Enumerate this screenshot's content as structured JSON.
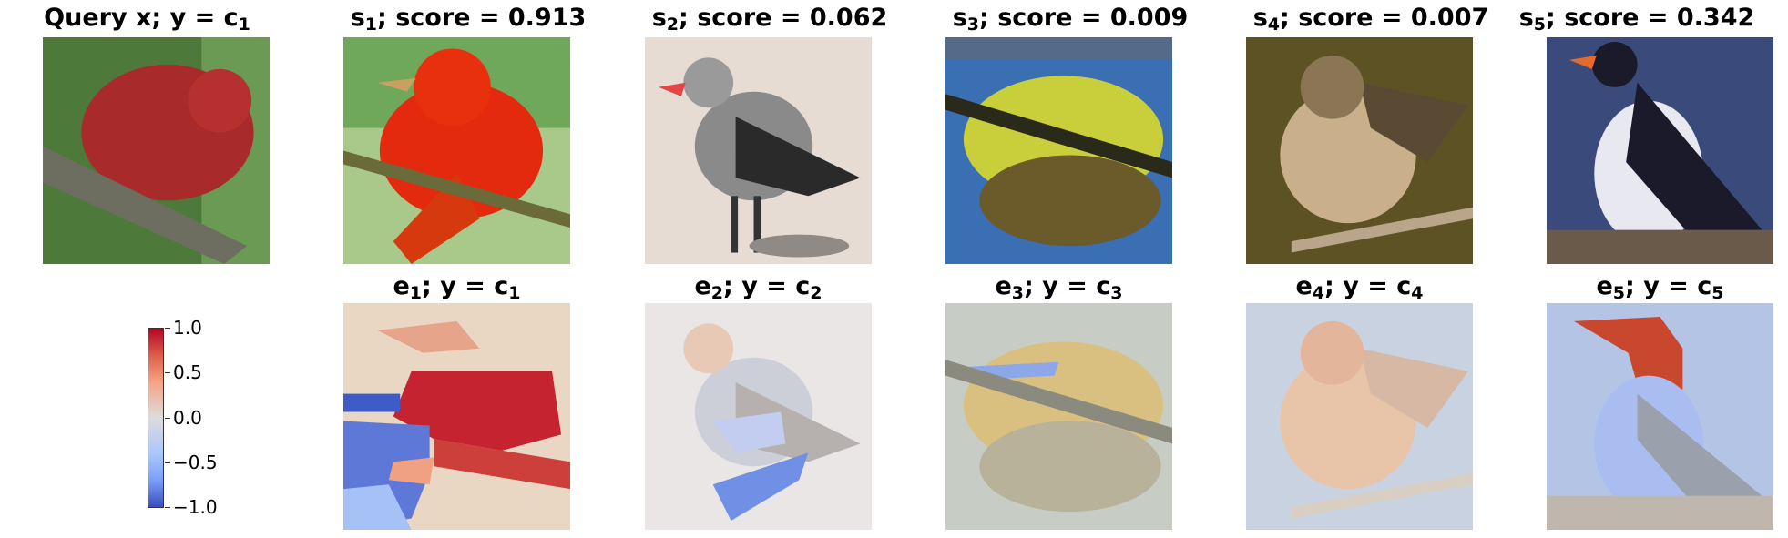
{
  "top_row": [
    {
      "name": "Query x",
      "class": "c",
      "sub": "1",
      "label": "Query x; y = c",
      "score": null
    },
    {
      "name": "s",
      "idx": "1",
      "score_text": "; score = 0.913"
    },
    {
      "name": "s",
      "idx": "2",
      "score_text": "; score = 0.062"
    },
    {
      "name": "s",
      "idx": "3",
      "score_text": "; score = 0.009"
    },
    {
      "name": "s",
      "idx": "4",
      "score_text": "; score = 0.007"
    },
    {
      "name": "s",
      "idx": "5",
      "score_text": "; score = 0.342"
    }
  ],
  "query_title": {
    "text": "Query x; y = c",
    "sub": "1"
  },
  "bottom_row": [
    {
      "name": "e",
      "idx": "1",
      "mid": "; y = c",
      "sub": "1"
    },
    {
      "name": "e",
      "idx": "2",
      "mid": "; y = c",
      "sub": "2"
    },
    {
      "name": "e",
      "idx": "3",
      "mid": "; y = c",
      "sub": "3"
    },
    {
      "name": "e",
      "idx": "4",
      "mid": "; y = c",
      "sub": "4"
    },
    {
      "name": "e",
      "idx": "5",
      "mid": "; y = c",
      "sub": "5"
    }
  ],
  "colorbar": {
    "ticks": [
      "1.0",
      "0.5",
      "0.0",
      "−0.5",
      "−1.0"
    ],
    "colormap": [
      "#b40426",
      "#dddcdc",
      "#3b4cc0"
    ]
  }
}
